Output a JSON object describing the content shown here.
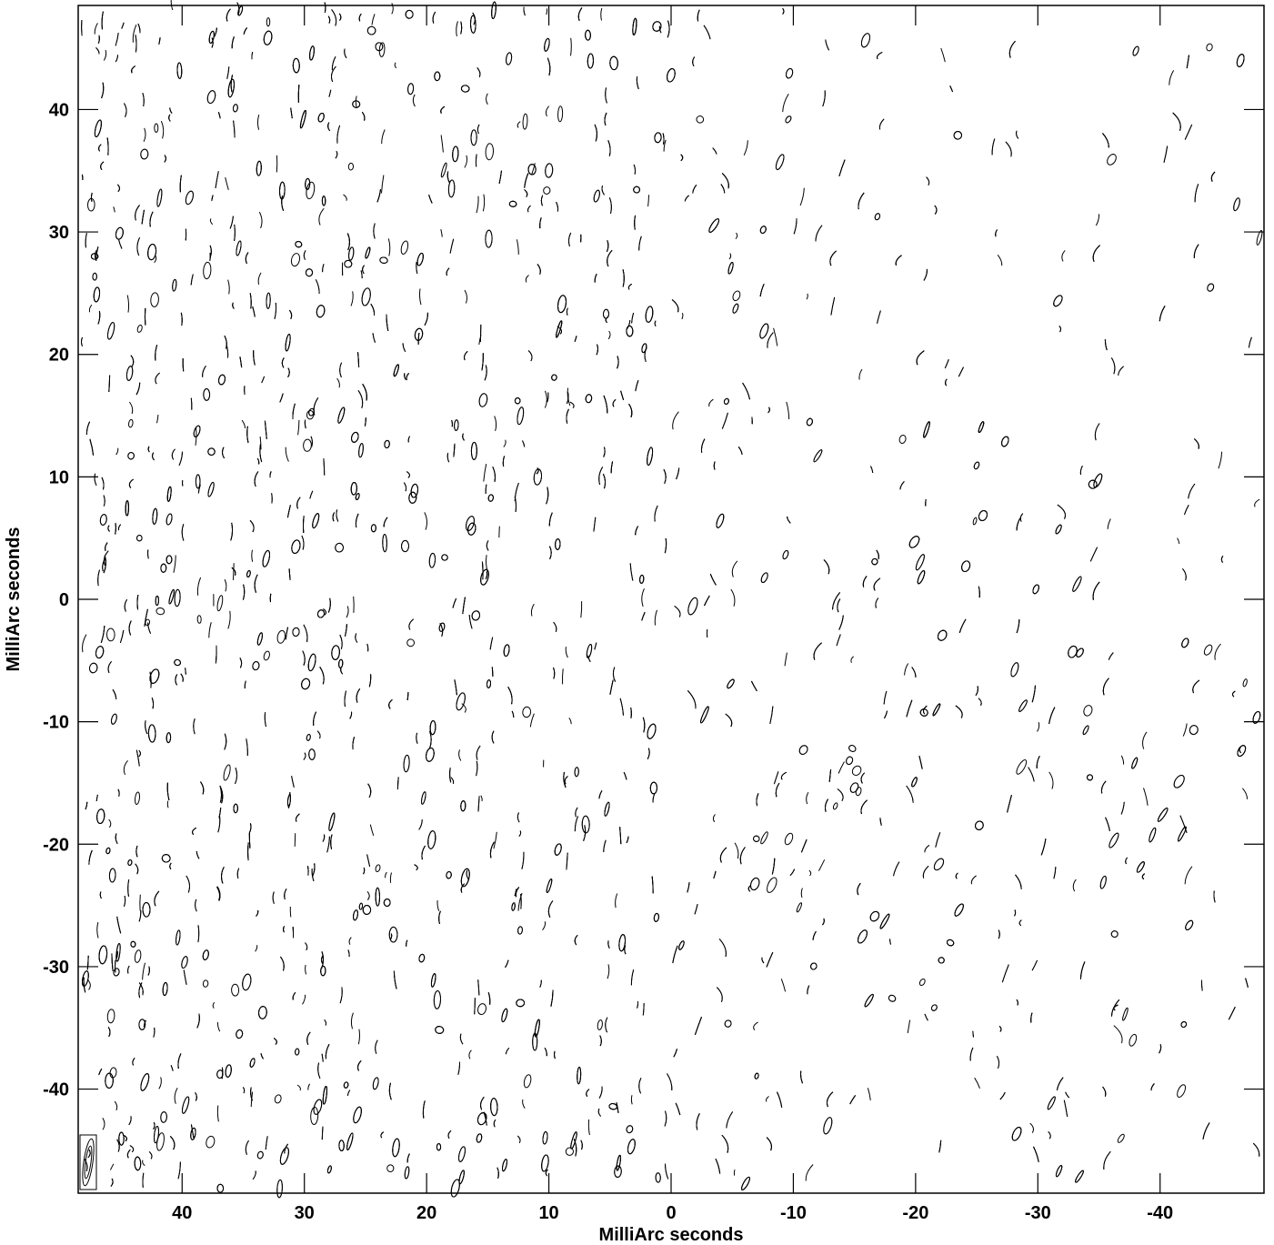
{
  "chart_data": {
    "type": "contour",
    "title": "",
    "xlabel": "MilliArc seconds",
    "ylabel": "MilliArc seconds",
    "xlim": [
      48.5,
      -48.5
    ],
    "ylim": [
      -48.5,
      48.5
    ],
    "x_ticks": [
      40,
      30,
      20,
      10,
      0,
      -10,
      -20,
      -30,
      -40
    ],
    "y_ticks": [
      40,
      30,
      20,
      10,
      0,
      -10,
      -20,
      -30,
      -40
    ],
    "x_tick_labels": [
      "40",
      "30",
      "20",
      "10",
      "0",
      "-10",
      "-20",
      "-30",
      "-40"
    ],
    "y_tick_labels": [
      "40",
      "30",
      "20",
      "10",
      "0",
      "-10",
      "-20",
      "-30",
      "-40"
    ],
    "grid": false,
    "contour_color": "#000000",
    "beam_marker": "bottom-left",
    "description_level": "dense sidelobe/fringe contour pattern; contour density decreases toward negative x"
  }
}
